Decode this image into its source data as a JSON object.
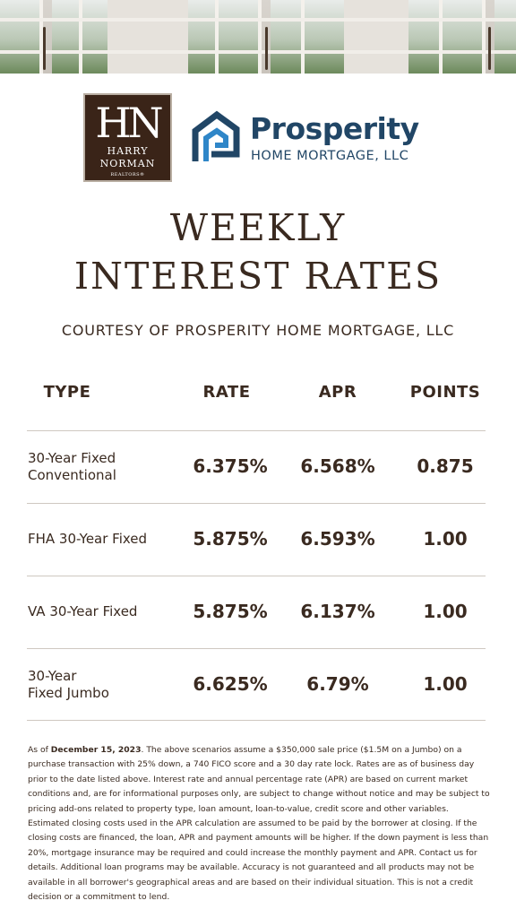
{
  "harry_norman": {
    "monogram": "HN",
    "line1": "HARRY",
    "line2": "NORMAN",
    "line3": "REALTORS®"
  },
  "prosperity": {
    "name": "Prosperity",
    "subtitle": "HOME MORTGAGE, LLC",
    "color": "#214666",
    "accent": "#2f86c8"
  },
  "title": {
    "line1": "WEEKLY",
    "line2": "INTEREST RATES"
  },
  "courtesy": "COURTESY OF PROSPERITY HOME MORTGAGE, LLC",
  "table": {
    "headers": {
      "type": "TYPE",
      "rate": "RATE",
      "apr": "APR",
      "points": "POINTS"
    },
    "rows": [
      {
        "type_line1": "30-Year Fixed",
        "type_line2": "Conventional",
        "rate": "6.375%",
        "apr": "6.568%",
        "points": "0.875"
      },
      {
        "type_line1": "FHA 30-Year Fixed",
        "type_line2": "",
        "rate": "5.875%",
        "apr": "6.593%",
        "points": "1.00"
      },
      {
        "type_line1": "VA 30-Year Fixed",
        "type_line2": "",
        "rate": "5.875%",
        "apr": "6.137%",
        "points": "1.00"
      },
      {
        "type_line1": "30-Year",
        "type_line2": "Fixed Jumbo",
        "rate": "6.625%",
        "apr": "6.79%",
        "points": "1.00"
      }
    ]
  },
  "disclaimer": {
    "prefix": "As of ",
    "date": "December 15, 2023",
    "body": ". The above scenarios assume a $350,000 sale price ($1.5M on a Jumbo) on a purchase transaction with 25% down, a 740 FICO score and a 30 day rate lock. Rates are as of business day prior to the date listed above. Interest rate and annual percentage rate (APR) are based on current market conditions and, are for informational purposes only, are subject to change without notice and may be subject to pricing add-ons related to property type, loan amount, loan-to-value, credit score and other variables. Estimated closing costs used in the APR calculation are assumed to be paid by the borrower at closing. If the closing costs are financed, the loan, APR and payment amounts will be higher. If the down payment is less than 20%, mortgage insurance may be required and could increase the monthly payment and APR. Contact us for details. Additional loan programs may be available. Accuracy is not guaranteed and all products may not be available in all borrower's geographical areas and are based on their individual situation. This is not a credit decision or a commitment to lend."
  },
  "colors": {
    "text": "#3a2a20",
    "hn_background": "#3a2418",
    "divider": "#cfc8c1"
  }
}
